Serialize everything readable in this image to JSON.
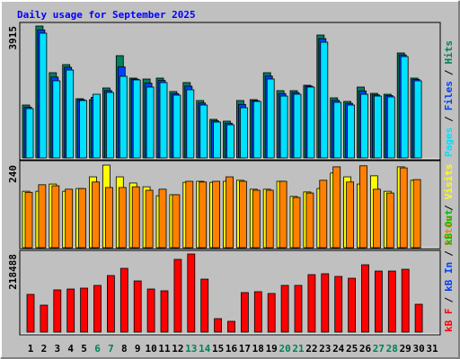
{
  "chart_data": {
    "type": "bar",
    "title": "Daily usage for September 2025",
    "legend_separator": "/",
    "categories": [
      "1",
      "2",
      "3",
      "4",
      "5",
      "6",
      "7",
      "8",
      "9",
      "10",
      "11",
      "12",
      "13",
      "14",
      "15",
      "16",
      "17",
      "18",
      "19",
      "20",
      "21",
      "22",
      "23",
      "24",
      "25",
      "26",
      "27",
      "28",
      "29",
      "30",
      "31"
    ],
    "category_colors": [
      "#000000",
      "#000000",
      "#000000",
      "#000000",
      "#000000",
      "#00805c",
      "#00805c",
      "#000000",
      "#000000",
      "#000000",
      "#000000",
      "#000000",
      "#00805c",
      "#00805c",
      "#000000",
      "#000000",
      "#000000",
      "#000000",
      "#000000",
      "#00805c",
      "#00805c",
      "#000000",
      "#000000",
      "#000000",
      "#000000",
      "#000000",
      "#00805c",
      "#00805c",
      "#000000",
      "#000000",
      "#000000"
    ],
    "panels": [
      {
        "ylim": [
          0,
          3915
        ],
        "yticks": [
          3915
        ],
        "series": [
          {
            "name": "Pages",
            "color": "#00e0ff",
            "values": [
              1465,
              3702,
              2290,
              2610,
              1704,
              1891,
              1944,
              2423,
              2317,
              2104,
              2237,
              1864,
              2024,
              1571,
              1065,
              985,
              1491,
              1678,
              2343,
              1837,
              1891,
              2104,
              3435,
              1651,
              1571,
              1891,
              1837,
              1811,
              3009,
              2290,
              null
            ]
          },
          {
            "name": "Files",
            "color": "#0040ff",
            "values": [
              1510,
              3800,
              2400,
              2690,
              1730,
              1800,
              2000,
              2700,
              2340,
              2220,
              2300,
              1910,
              2130,
              1630,
              1100,
              1030,
              1590,
              1700,
              2430,
              1910,
              1940,
              2130,
              3540,
              1710,
              1620,
              1990,
              1870,
              1850,
              3060,
              2330,
              null
            ]
          },
          {
            "name": "Hits",
            "color": "#00805c",
            "values": [
              1571,
              3915,
              2530,
              2770,
              1758,
              1731,
              2077,
              3036,
              2370,
              2343,
              2370,
              1971,
              2237,
              1704,
              1145,
              1092,
              1704,
              1731,
              2530,
              1997,
              1997,
              2157,
              3648,
              1784,
              1678,
              2104,
              1917,
              1891,
              3116,
              2370,
              null
            ]
          }
        ]
      },
      {
        "ylim": [
          0,
          240
        ],
        "yticks": [
          240
        ],
        "series": [
          {
            "name": "Sites",
            "color": "#ff8000",
            "values": [
              161,
              183,
              180,
              170,
              172,
              191,
              175,
              175,
              177,
              167,
              170,
              154,
              193,
              191,
              193,
              206,
              193,
              167,
              167,
              193,
              146,
              159,
              196,
              235,
              191,
              238,
              170,
              159,
              232,
              198,
              null
            ]
          },
          {
            "name": "Visits",
            "color": "#ffff00",
            "values": [
              164,
              164,
              185,
              164,
              172,
              206,
              240,
              206,
              188,
              177,
              151,
              154,
              190,
              193,
              190,
              193,
              196,
              170,
              170,
              193,
              149,
              162,
              172,
              217,
              206,
              185,
              209,
              164,
              235,
              196,
              null
            ]
          }
        ]
      },
      {
        "ylim": [
          0,
          218488
        ],
        "yticks": [
          218488
        ],
        "series": [
          {
            "name": "kB F",
            "color": "#ff0000",
            "values": [
              105462,
              75330,
              118017,
              120528,
              123039,
              130572,
              158193,
              178281,
              143127,
              120528,
              115506,
              203391,
              218488,
              148149,
              37665,
              30132,
              110484,
              112995,
              107973,
              130572,
              130572,
              160704,
              163215,
              155682,
              150660,
              188325,
              170748,
              170748,
              175770,
              77841,
              null
            ]
          },
          {
            "name": "kB In",
            "color": "#0040ff"
          },
          {
            "name": "kB Out",
            "color": "#00c000"
          }
        ]
      }
    ]
  }
}
